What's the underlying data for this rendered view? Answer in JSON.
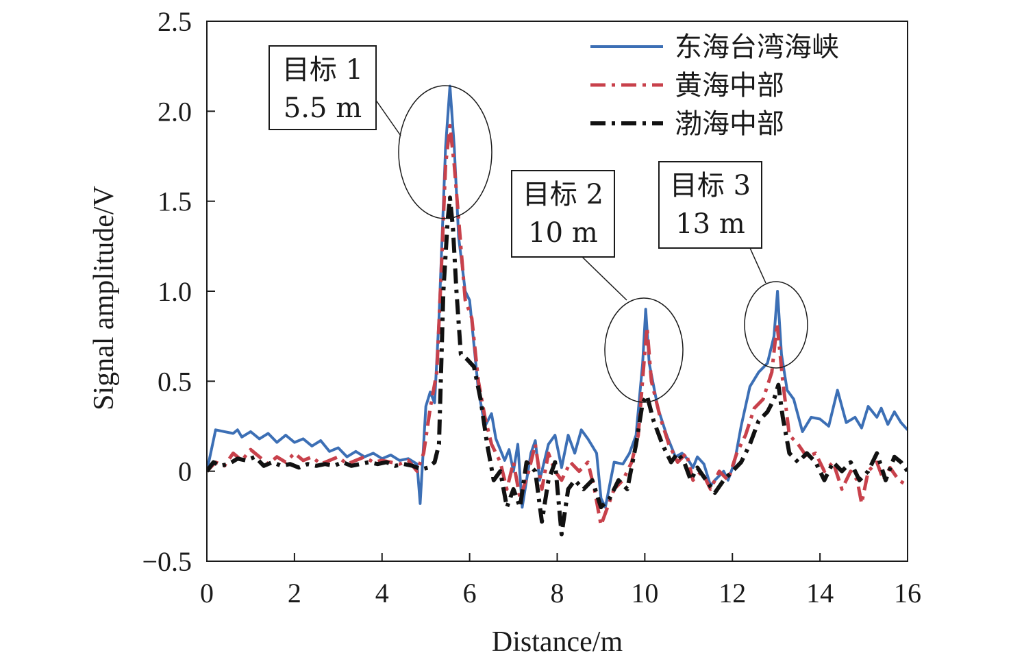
{
  "chart_data": {
    "type": "line",
    "xlabel": "Distance/m",
    "ylabel": "Signal amplitude/V",
    "xlim": [
      0,
      16
    ],
    "ylim": [
      -0.5,
      2.5
    ],
    "xticks": [
      0,
      2,
      4,
      6,
      8,
      10,
      12,
      14,
      16
    ],
    "xtick_labels": [
      "0",
      "2",
      "4",
      "6",
      "8",
      "10",
      "12",
      "14",
      "16"
    ],
    "yticks": [
      -0.5,
      0,
      0.5,
      1.0,
      1.5,
      2.0,
      2.5
    ],
    "ytick_labels": [
      "−0.5",
      "0",
      "0.5",
      "1.0",
      "1.5",
      "2.0",
      "2.5"
    ],
    "grid": false,
    "legend_position": "top-right",
    "series": [
      {
        "name": "东海台湾海峡",
        "color": "#3c6fb5",
        "dash": "solid",
        "points": [
          [
            0.0,
            0.0
          ],
          [
            0.2,
            0.23
          ],
          [
            0.4,
            0.22
          ],
          [
            0.6,
            0.21
          ],
          [
            0.7,
            0.23
          ],
          [
            0.8,
            0.19
          ],
          [
            1.0,
            0.22
          ],
          [
            1.2,
            0.18
          ],
          [
            1.4,
            0.21
          ],
          [
            1.6,
            0.16
          ],
          [
            1.8,
            0.2
          ],
          [
            2.0,
            0.16
          ],
          [
            2.2,
            0.18
          ],
          [
            2.4,
            0.14
          ],
          [
            2.6,
            0.17
          ],
          [
            2.8,
            0.11
          ],
          [
            3.0,
            0.13
          ],
          [
            3.2,
            0.08
          ],
          [
            3.4,
            0.11
          ],
          [
            3.6,
            0.08
          ],
          [
            3.8,
            0.1
          ],
          [
            4.0,
            0.07
          ],
          [
            4.2,
            0.09
          ],
          [
            4.4,
            0.06
          ],
          [
            4.6,
            0.07
          ],
          [
            4.8,
            0.04
          ],
          [
            4.87,
            -0.18
          ],
          [
            5.0,
            0.36
          ],
          [
            5.1,
            0.44
          ],
          [
            5.2,
            0.38
          ],
          [
            5.3,
            0.85
          ],
          [
            5.45,
            1.8
          ],
          [
            5.55,
            2.14
          ],
          [
            5.65,
            1.8
          ],
          [
            5.75,
            1.3
          ],
          [
            5.9,
            1.0
          ],
          [
            6.0,
            0.95
          ],
          [
            6.1,
            0.7
          ],
          [
            6.2,
            0.45
          ],
          [
            6.35,
            0.25
          ],
          [
            6.5,
            0.32
          ],
          [
            6.6,
            0.18
          ],
          [
            6.8,
            0.06
          ],
          [
            6.9,
            0.12
          ],
          [
            7.0,
            0.0
          ],
          [
            7.1,
            0.15
          ],
          [
            7.2,
            -0.2
          ],
          [
            7.4,
            0.1
          ],
          [
            7.5,
            0.17
          ],
          [
            7.6,
            -0.05
          ],
          [
            7.8,
            0.15
          ],
          [
            7.95,
            0.2
          ],
          [
            8.1,
            0.02
          ],
          [
            8.25,
            0.2
          ],
          [
            8.4,
            0.1
          ],
          [
            8.55,
            0.23
          ],
          [
            8.7,
            0.18
          ],
          [
            8.9,
            0.1
          ],
          [
            9.0,
            -0.15
          ],
          [
            9.1,
            -0.2
          ],
          [
            9.3,
            0.05
          ],
          [
            9.5,
            0.04
          ],
          [
            9.65,
            0.1
          ],
          [
            9.8,
            0.2
          ],
          [
            9.95,
            0.6
          ],
          [
            10.02,
            0.9
          ],
          [
            10.1,
            0.6
          ],
          [
            10.3,
            0.35
          ],
          [
            10.5,
            0.2
          ],
          [
            10.7,
            0.08
          ],
          [
            10.85,
            0.1
          ],
          [
            11.0,
            0.06
          ],
          [
            11.1,
            0.02
          ],
          [
            11.2,
            0.08
          ],
          [
            11.35,
            0.04
          ],
          [
            11.5,
            -0.08
          ],
          [
            11.6,
            -0.05
          ],
          [
            11.8,
            0.0
          ],
          [
            11.9,
            -0.05
          ],
          [
            12.05,
            0.05
          ],
          [
            12.2,
            0.25
          ],
          [
            12.4,
            0.47
          ],
          [
            12.6,
            0.55
          ],
          [
            12.8,
            0.6
          ],
          [
            12.95,
            0.75
          ],
          [
            13.03,
            1.0
          ],
          [
            13.12,
            0.65
          ],
          [
            13.25,
            0.45
          ],
          [
            13.4,
            0.4
          ],
          [
            13.6,
            0.22
          ],
          [
            13.8,
            0.3
          ],
          [
            14.0,
            0.29
          ],
          [
            14.2,
            0.25
          ],
          [
            14.4,
            0.45
          ],
          [
            14.6,
            0.27
          ],
          [
            14.8,
            0.3
          ],
          [
            14.95,
            0.24
          ],
          [
            15.1,
            0.36
          ],
          [
            15.3,
            0.3
          ],
          [
            15.4,
            0.35
          ],
          [
            15.55,
            0.26
          ],
          [
            15.7,
            0.33
          ],
          [
            15.85,
            0.27
          ],
          [
            16.0,
            0.23
          ]
        ]
      },
      {
        "name": "黄海中部",
        "color": "#c8414b",
        "dash": "dashdot",
        "points": [
          [
            0.0,
            0.0
          ],
          [
            0.2,
            0.05
          ],
          [
            0.4,
            0.03
          ],
          [
            0.6,
            0.1
          ],
          [
            0.8,
            0.06
          ],
          [
            1.0,
            0.12
          ],
          [
            1.2,
            0.08
          ],
          [
            1.4,
            0.04
          ],
          [
            1.6,
            0.08
          ],
          [
            1.8,
            0.05
          ],
          [
            2.0,
            0.1
          ],
          [
            2.2,
            0.06
          ],
          [
            2.4,
            0.08
          ],
          [
            2.6,
            0.04
          ],
          [
            2.8,
            0.06
          ],
          [
            3.0,
            0.08
          ],
          [
            3.2,
            0.04
          ],
          [
            3.4,
            0.06
          ],
          [
            3.6,
            0.08
          ],
          [
            3.8,
            0.05
          ],
          [
            4.0,
            0.06
          ],
          [
            4.2,
            0.05
          ],
          [
            4.4,
            0.04
          ],
          [
            4.6,
            0.06
          ],
          [
            4.8,
            0.0
          ],
          [
            4.95,
            0.1
          ],
          [
            5.1,
            0.35
          ],
          [
            5.25,
            0.55
          ],
          [
            5.35,
            1.1
          ],
          [
            5.45,
            1.7
          ],
          [
            5.55,
            1.92
          ],
          [
            5.65,
            1.7
          ],
          [
            5.75,
            1.4
          ],
          [
            5.9,
            0.95
          ],
          [
            6.05,
            0.85
          ],
          [
            6.2,
            0.5
          ],
          [
            6.35,
            0.3
          ],
          [
            6.5,
            0.15
          ],
          [
            6.7,
            0.05
          ],
          [
            6.85,
            -0.1
          ],
          [
            7.0,
            0.05
          ],
          [
            7.15,
            -0.15
          ],
          [
            7.35,
            0.0
          ],
          [
            7.5,
            0.15
          ],
          [
            7.65,
            -0.1
          ],
          [
            7.8,
            0.1
          ],
          [
            7.95,
            0.0
          ],
          [
            8.1,
            -0.05
          ],
          [
            8.3,
            0.05
          ],
          [
            8.5,
            0.0
          ],
          [
            8.7,
            0.05
          ],
          [
            8.85,
            -0.1
          ],
          [
            9.0,
            -0.3
          ],
          [
            9.15,
            -0.2
          ],
          [
            9.3,
            -0.1
          ],
          [
            9.5,
            -0.05
          ],
          [
            9.7,
            0.05
          ],
          [
            9.85,
            0.2
          ],
          [
            9.98,
            0.6
          ],
          [
            10.05,
            0.8
          ],
          [
            10.15,
            0.5
          ],
          [
            10.35,
            0.3
          ],
          [
            10.55,
            0.15
          ],
          [
            10.75,
            0.05
          ],
          [
            10.95,
            0.1
          ],
          [
            11.1,
            -0.05
          ],
          [
            11.3,
            0.0
          ],
          [
            11.5,
            -0.1
          ],
          [
            11.7,
            0.0
          ],
          [
            11.9,
            -0.05
          ],
          [
            12.1,
            0.1
          ],
          [
            12.3,
            0.2
          ],
          [
            12.5,
            0.35
          ],
          [
            12.7,
            0.4
          ],
          [
            12.9,
            0.55
          ],
          [
            13.02,
            0.82
          ],
          [
            13.15,
            0.5
          ],
          [
            13.3,
            0.2
          ],
          [
            13.5,
            0.15
          ],
          [
            13.7,
            0.08
          ],
          [
            13.9,
            0.1
          ],
          [
            14.1,
            0.0
          ],
          [
            14.3,
            0.05
          ],
          [
            14.5,
            -0.1
          ],
          [
            14.7,
            0.0
          ],
          [
            14.85,
            -0.05
          ],
          [
            14.95,
            -0.18
          ],
          [
            15.1,
            0.0
          ],
          [
            15.3,
            0.05
          ],
          [
            15.45,
            -0.05
          ],
          [
            15.6,
            0.02
          ],
          [
            15.8,
            -0.05
          ],
          [
            16.0,
            -0.08
          ]
        ]
      },
      {
        "name": "渤海中部",
        "color": "#111111",
        "dash": "dashdot",
        "points": [
          [
            0.0,
            0.0
          ],
          [
            0.15,
            0.05
          ],
          [
            0.3,
            0.03
          ],
          [
            0.5,
            0.04
          ],
          [
            0.7,
            0.07
          ],
          [
            0.9,
            0.06
          ],
          [
            1.1,
            0.08
          ],
          [
            1.3,
            0.03
          ],
          [
            1.5,
            0.05
          ],
          [
            1.7,
            0.03
          ],
          [
            1.9,
            0.04
          ],
          [
            2.1,
            0.02
          ],
          [
            2.3,
            0.04
          ],
          [
            2.5,
            0.03
          ],
          [
            2.7,
            0.04
          ],
          [
            2.9,
            0.03
          ],
          [
            3.1,
            0.05
          ],
          [
            3.3,
            0.03
          ],
          [
            3.5,
            0.04
          ],
          [
            3.7,
            0.05
          ],
          [
            3.9,
            0.04
          ],
          [
            4.1,
            0.05
          ],
          [
            4.3,
            0.03
          ],
          [
            4.5,
            0.04
          ],
          [
            4.7,
            0.03
          ],
          [
            4.9,
            0.01
          ],
          [
            5.05,
            0.02
          ],
          [
            5.2,
            0.05
          ],
          [
            5.3,
            0.15
          ],
          [
            5.4,
            1.0
          ],
          [
            5.5,
            1.4
          ],
          [
            5.55,
            1.52
          ],
          [
            5.62,
            1.35
          ],
          [
            5.7,
            1.0
          ],
          [
            5.8,
            0.65
          ],
          [
            5.95,
            0.62
          ],
          [
            6.1,
            0.58
          ],
          [
            6.25,
            0.4
          ],
          [
            6.4,
            0.15
          ],
          [
            6.55,
            -0.05
          ],
          [
            6.7,
            0.0
          ],
          [
            6.85,
            -0.2
          ],
          [
            7.0,
            -0.1
          ],
          [
            7.15,
            -0.2
          ],
          [
            7.3,
            0.05
          ],
          [
            7.5,
            0.0
          ],
          [
            7.65,
            -0.28
          ],
          [
            7.8,
            -0.05
          ],
          [
            7.95,
            0.05
          ],
          [
            8.1,
            -0.35
          ],
          [
            8.25,
            -0.1
          ],
          [
            8.4,
            -0.05
          ],
          [
            8.6,
            -0.1
          ],
          [
            8.8,
            -0.05
          ],
          [
            9.0,
            -0.2
          ],
          [
            9.2,
            -0.15
          ],
          [
            9.4,
            -0.05
          ],
          [
            9.6,
            -0.1
          ],
          [
            9.8,
            0.15
          ],
          [
            9.95,
            0.38
          ],
          [
            10.05,
            0.42
          ],
          [
            10.2,
            0.28
          ],
          [
            10.4,
            0.15
          ],
          [
            10.6,
            0.05
          ],
          [
            10.75,
            0.1
          ],
          [
            10.9,
            0.05
          ],
          [
            11.05,
            -0.05
          ],
          [
            11.2,
            0.02
          ],
          [
            11.4,
            -0.05
          ],
          [
            11.6,
            -0.12
          ],
          [
            11.8,
            -0.05
          ],
          [
            12.0,
            0.0
          ],
          [
            12.2,
            0.05
          ],
          [
            12.4,
            0.15
          ],
          [
            12.6,
            0.28
          ],
          [
            12.8,
            0.33
          ],
          [
            12.95,
            0.4
          ],
          [
            13.05,
            0.48
          ],
          [
            13.15,
            0.3
          ],
          [
            13.3,
            0.1
          ],
          [
            13.5,
            0.05
          ],
          [
            13.7,
            0.1
          ],
          [
            13.9,
            0.05
          ],
          [
            14.1,
            -0.05
          ],
          [
            14.3,
            0.05
          ],
          [
            14.5,
            0.0
          ],
          [
            14.7,
            0.05
          ],
          [
            14.9,
            -0.05
          ],
          [
            15.1,
            0.0
          ],
          [
            15.3,
            0.1
          ],
          [
            15.5,
            -0.05
          ],
          [
            15.7,
            0.08
          ],
          [
            15.85,
            0.05
          ],
          [
            16.0,
            0.0
          ]
        ]
      }
    ],
    "annotations": [
      {
        "lines": [
          "目标 1",
          "5.5 m"
        ],
        "target_x": 5.55,
        "target_y": 1.78
      },
      {
        "lines": [
          "目标 2",
          "10 m"
        ],
        "target_x": 10.02,
        "target_y": 0.65
      },
      {
        "lines": [
          "目标 3",
          "13 m"
        ],
        "target_x": 13.03,
        "target_y": 0.75
      }
    ]
  }
}
